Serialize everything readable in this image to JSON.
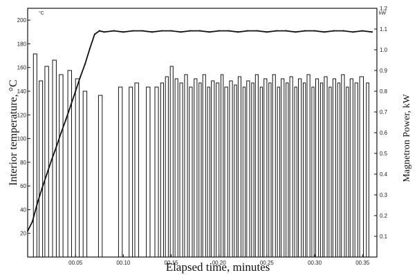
{
  "chart_data": {
    "type": "line",
    "title": "",
    "xlabel": "Elapsed time, minutes",
    "ylabel": "Interior temperature, °C",
    "y2label": "Magnetron Power, kW",
    "left_unit": "°C",
    "right_unit": "kW",
    "xlim": [
      0,
      36.5
    ],
    "ylim": [
      0,
      210
    ],
    "y2lim": [
      0,
      1.2
    ],
    "x_ticks": [
      5,
      10,
      15,
      20,
      25,
      30,
      35
    ],
    "x_tick_labels": [
      "00.05",
      "00.10",
      "00.15",
      "00.20",
      "00.25",
      "00.30",
      "00.35"
    ],
    "y_ticks": [
      20,
      40,
      60,
      80,
      100,
      120,
      140,
      160,
      180,
      200
    ],
    "y2_ticks": [
      0.1,
      0.2,
      0.3,
      0.4,
      0.5,
      0.6,
      0.7,
      0.8,
      0.9,
      1.0,
      1.1,
      1.2
    ],
    "y2_tick_labels": [
      "0.1",
      "0.2",
      "0.3",
      "0.4",
      "0.5",
      "0.6",
      "0.7",
      "0.8",
      "0.9",
      "1.0",
      "1.1",
      "1.2"
    ],
    "grid": false,
    "series": [
      {
        "axis": "left",
        "points": [
          [
            0,
            22
          ],
          [
            0.5,
            30
          ],
          [
            1,
            45
          ],
          [
            1.5,
            58
          ],
          [
            2,
            70
          ],
          [
            2.5,
            82
          ],
          [
            3,
            93
          ],
          [
            3.5,
            105
          ],
          [
            4,
            116
          ],
          [
            4.5,
            128
          ],
          [
            5,
            140
          ],
          [
            5.5,
            152
          ],
          [
            6,
            163
          ],
          [
            6.5,
            176
          ],
          [
            7,
            188
          ],
          [
            7.5,
            191
          ],
          [
            8,
            190
          ],
          [
            9,
            191
          ],
          [
            10,
            190
          ],
          [
            11,
            191
          ],
          [
            12,
            191
          ],
          [
            13,
            190
          ],
          [
            14,
            191
          ],
          [
            15,
            191
          ],
          [
            16,
            190
          ],
          [
            17,
            191
          ],
          [
            18,
            191
          ],
          [
            19,
            190
          ],
          [
            20,
            191
          ],
          [
            21,
            191
          ],
          [
            22,
            190
          ],
          [
            23,
            191
          ],
          [
            24,
            191
          ],
          [
            25,
            190
          ],
          [
            26,
            191
          ],
          [
            27,
            191
          ],
          [
            28,
            190
          ],
          [
            29,
            191
          ],
          [
            30,
            191
          ],
          [
            31,
            190
          ],
          [
            32,
            191
          ],
          [
            33,
            191
          ],
          [
            34,
            190
          ],
          [
            35,
            191
          ],
          [
            36,
            190
          ]
        ]
      },
      {
        "axis": "right",
        "on_level": [
          [
            0.6,
            0.98
          ],
          [
            1.2,
            0.85
          ],
          [
            1.8,
            0.92
          ],
          [
            2.6,
            0.95
          ],
          [
            3.3,
            0.88
          ],
          [
            4.2,
            0.9
          ],
          [
            5.0,
            0.86
          ],
          [
            5.8,
            0.8
          ],
          [
            7.4,
            0.78
          ],
          [
            9.5,
            0.82
          ],
          [
            10.6,
            0.82
          ],
          [
            11.2,
            0.84
          ],
          [
            12.4,
            0.82
          ],
          [
            13.3,
            0.82
          ],
          [
            13.9,
            0.84
          ],
          [
            14.4,
            0.87
          ],
          [
            14.9,
            0.92
          ],
          [
            15.4,
            0.86
          ],
          [
            15.9,
            0.84
          ],
          [
            16.4,
            0.88
          ],
          [
            16.9,
            0.82
          ],
          [
            17.4,
            0.86
          ],
          [
            17.9,
            0.84
          ],
          [
            18.3,
            0.88
          ],
          [
            18.8,
            0.82
          ],
          [
            19.2,
            0.85
          ],
          [
            19.7,
            0.84
          ],
          [
            20.2,
            0.88
          ],
          [
            20.6,
            0.82
          ],
          [
            21.1,
            0.85
          ],
          [
            21.6,
            0.83
          ],
          [
            22.0,
            0.87
          ],
          [
            22.5,
            0.82
          ],
          [
            22.9,
            0.85
          ],
          [
            23.4,
            0.84
          ],
          [
            23.8,
            0.88
          ],
          [
            24.3,
            0.82
          ],
          [
            24.7,
            0.86
          ],
          [
            25.2,
            0.84
          ],
          [
            25.6,
            0.88
          ],
          [
            26.1,
            0.82
          ],
          [
            26.5,
            0.86
          ],
          [
            27.0,
            0.84
          ],
          [
            27.4,
            0.87
          ],
          [
            27.9,
            0.82
          ],
          [
            28.3,
            0.86
          ],
          [
            28.8,
            0.84
          ],
          [
            29.2,
            0.88
          ],
          [
            29.7,
            0.82
          ],
          [
            30.1,
            0.86
          ],
          [
            30.6,
            0.84
          ],
          [
            31.0,
            0.87
          ],
          [
            31.5,
            0.82
          ],
          [
            31.9,
            0.86
          ],
          [
            32.4,
            0.84
          ],
          [
            32.8,
            0.88
          ],
          [
            33.3,
            0.82
          ],
          [
            33.7,
            0.86
          ],
          [
            34.2,
            0.84
          ],
          [
            34.7,
            0.87
          ],
          [
            35.4,
            0.84
          ]
        ]
      }
    ]
  }
}
